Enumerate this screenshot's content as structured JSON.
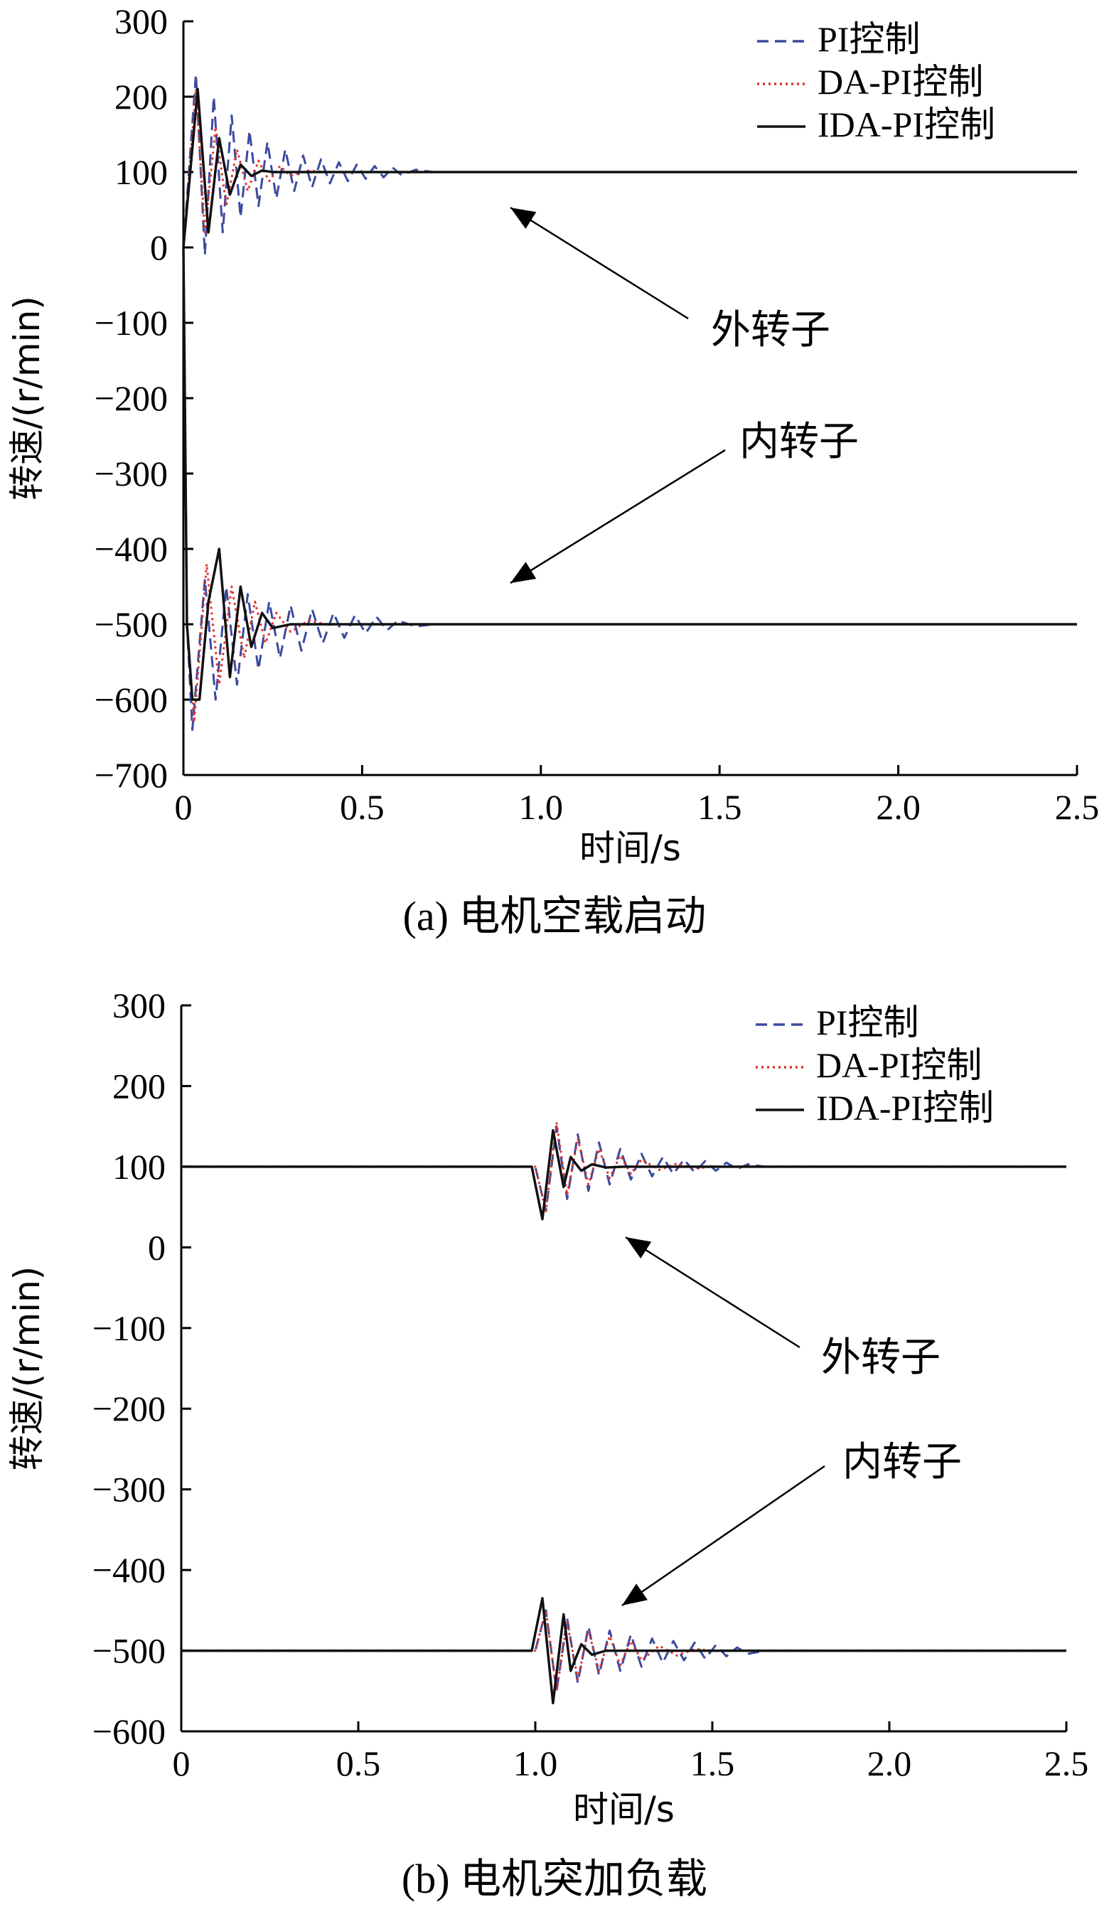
{
  "chart_data": [
    {
      "id": "a",
      "type": "line",
      "caption": "(a)  电机空载启动",
      "xlabel": "时间/s",
      "ylabel": "转速/(r/min)",
      "xlim": [
        0,
        2.5
      ],
      "ylim": [
        -700,
        300
      ],
      "xticks": [
        "0",
        "0.5",
        "1.0",
        "1.5",
        "2.0",
        "2.5"
      ],
      "yticks": [
        "300",
        "200",
        "100",
        "0",
        "−100",
        "−200",
        "−300",
        "−400",
        "−500",
        "−600",
        "−700"
      ],
      "legend_position": "top-right",
      "annotations": [
        {
          "text": "外转子",
          "target": [
            0.9,
            100
          ]
        },
        {
          "text": "内转子",
          "target": [
            0.9,
            -440
          ]
        }
      ],
      "series": [
        {
          "name": "PI控制",
          "style": "dashed",
          "color": "#3b4aa0",
          "curves": [
            {
              "x": [
                0,
                0.035,
                0.06,
                0.085,
                0.11,
                0.135,
                0.16,
                0.185,
                0.21,
                0.235,
                0.26,
                0.285,
                0.31,
                0.335,
                0.36,
                0.385,
                0.41,
                0.435,
                0.46,
                0.485,
                0.51,
                0.535,
                0.56,
                0.585,
                0.61,
                0.65,
                0.7,
                0.8,
                1.0,
                2.5
              ],
              "y": [
                0,
                230,
                -10,
                200,
                20,
                175,
                40,
                155,
                55,
                140,
                65,
                130,
                75,
                122,
                80,
                117,
                85,
                113,
                88,
                110,
                91,
                108,
                93,
                106,
                96,
                103,
                100,
                100,
                100,
                100
              ]
            },
            {
              "x": [
                0,
                0.01,
                0.025,
                0.06,
                0.09,
                0.12,
                0.15,
                0.18,
                0.21,
                0.24,
                0.27,
                0.3,
                0.33,
                0.36,
                0.39,
                0.42,
                0.45,
                0.48,
                0.51,
                0.54,
                0.57,
                0.6,
                0.65,
                0.7,
                0.8,
                2.5
              ],
              "y": [
                0,
                -500,
                -640,
                -440,
                -600,
                -450,
                -580,
                -460,
                -560,
                -470,
                -545,
                -475,
                -535,
                -480,
                -525,
                -485,
                -518,
                -488,
                -512,
                -490,
                -508,
                -495,
                -503,
                -500,
                -500,
                -500
              ]
            }
          ]
        },
        {
          "name": "DA-PI控制",
          "style": "dotted",
          "color": "#e0312a",
          "curves": [
            {
              "x": [
                0,
                0.035,
                0.06,
                0.09,
                0.12,
                0.15,
                0.18,
                0.21,
                0.24,
                0.27,
                0.3,
                0.35,
                0.4,
                2.5
              ],
              "y": [
                0,
                210,
                20,
                160,
                55,
                130,
                75,
                115,
                88,
                108,
                95,
                102,
                100,
                100
              ]
            },
            {
              "x": [
                0,
                0.01,
                0.03,
                0.065,
                0.1,
                0.135,
                0.17,
                0.2,
                0.23,
                0.26,
                0.3,
                0.35,
                0.4,
                2.5
              ],
              "y": [
                0,
                -500,
                -630,
                -420,
                -580,
                -450,
                -545,
                -470,
                -525,
                -485,
                -510,
                -495,
                -500,
                -500
              ]
            }
          ]
        },
        {
          "name": "IDA-PI控制",
          "style": "solid",
          "color": "#111111",
          "curves": [
            {
              "x": [
                0,
                0.04,
                0.07,
                0.1,
                0.13,
                0.16,
                0.19,
                0.22,
                0.25,
                0.3,
                2.5
              ],
              "y": [
                0,
                210,
                20,
                145,
                70,
                110,
                95,
                102,
                100,
                100,
                100
              ]
            },
            {
              "x": [
                0,
                0.01,
                0.025,
                0.045,
                0.07,
                0.1,
                0.13,
                0.16,
                0.19,
                0.22,
                0.25,
                0.3,
                2.5
              ],
              "y": [
                0,
                -500,
                -600,
                -600,
                -470,
                -400,
                -570,
                -450,
                -530,
                -485,
                -505,
                -500,
                -500
              ]
            }
          ]
        }
      ]
    },
    {
      "id": "b",
      "type": "line",
      "caption": "(b)  电机突加负载",
      "xlabel": "时间/s",
      "ylabel": "转速/(r/min)",
      "xlim": [
        0,
        2.5
      ],
      "ylim": [
        -600,
        300
      ],
      "xticks": [
        "0",
        "0.5",
        "1.0",
        "1.5",
        "2.0",
        "2.5"
      ],
      "yticks": [
        "300",
        "200",
        "100",
        "0",
        "−100",
        "−200",
        "−300",
        "−400",
        "−500",
        "−600"
      ],
      "legend_position": "top-right",
      "annotations": [
        {
          "text": "外转子",
          "target": [
            1.2,
            45
          ]
        },
        {
          "text": "内转子",
          "target": [
            1.2,
            -430
          ]
        }
      ],
      "series": [
        {
          "name": "PI控制",
          "style": "dashed",
          "color": "#3b4aa0",
          "curves": [
            {
              "x": [
                0,
                1.0,
                1.03,
                1.06,
                1.09,
                1.12,
                1.15,
                1.18,
                1.21,
                1.24,
                1.27,
                1.3,
                1.33,
                1.36,
                1.39,
                1.42,
                1.45,
                1.48,
                1.51,
                1.54,
                1.57,
                1.6,
                1.65,
                2.5
              ],
              "y": [
                100,
                100,
                45,
                150,
                60,
                140,
                70,
                130,
                78,
                122,
                84,
                116,
                88,
                112,
                91,
                109,
                93,
                107,
                95,
                105,
                97,
                103,
                100,
                100
              ]
            },
            {
              "x": [
                0,
                1.0,
                1.03,
                1.06,
                1.09,
                1.12,
                1.15,
                1.18,
                1.21,
                1.24,
                1.27,
                1.3,
                1.33,
                1.36,
                1.39,
                1.42,
                1.45,
                1.48,
                1.51,
                1.54,
                1.57,
                1.6,
                1.65,
                2.5
              ],
              "y": [
                -500,
                -500,
                -450,
                -550,
                -460,
                -540,
                -470,
                -530,
                -475,
                -525,
                -480,
                -520,
                -485,
                -515,
                -488,
                -512,
                -490,
                -510,
                -493,
                -507,
                -496,
                -504,
                -500,
                -500
              ]
            }
          ]
        },
        {
          "name": "DA-PI控制",
          "style": "dotted",
          "color": "#e0312a",
          "curves": [
            {
              "x": [
                0,
                1.0,
                1.03,
                1.06,
                1.09,
                1.12,
                1.15,
                1.18,
                1.21,
                1.24,
                1.27,
                1.3,
                1.35,
                1.4,
                1.45,
                1.5,
                2.5
              ],
              "y": [
                100,
                100,
                45,
                155,
                65,
                135,
                78,
                122,
                86,
                114,
                91,
                109,
                96,
                104,
                98,
                100,
                100
              ]
            },
            {
              "x": [
                0,
                1.0,
                1.03,
                1.06,
                1.09,
                1.12,
                1.15,
                1.18,
                1.21,
                1.24,
                1.27,
                1.3,
                1.35,
                1.4,
                1.45,
                1.5,
                2.5
              ],
              "y": [
                -500,
                -500,
                -450,
                -550,
                -465,
                -535,
                -475,
                -525,
                -482,
                -518,
                -488,
                -512,
                -494,
                -506,
                -498,
                -500,
                -500
              ]
            }
          ]
        },
        {
          "name": "IDA-PI控制",
          "style": "solid",
          "color": "#111111",
          "curves": [
            {
              "x": [
                0,
                0.99,
                1.02,
                1.05,
                1.08,
                1.1,
                1.13,
                1.16,
                1.2,
                1.25,
                2.5
              ],
              "y": [
                100,
                100,
                35,
                145,
                75,
                112,
                95,
                103,
                99,
                100,
                100
              ]
            },
            {
              "x": [
                0,
                0.99,
                1.02,
                1.05,
                1.08,
                1.1,
                1.13,
                1.16,
                1.2,
                1.25,
                2.5
              ],
              "y": [
                -500,
                -500,
                -435,
                -565,
                -455,
                -525,
                -492,
                -505,
                -500,
                -500,
                -500
              ]
            }
          ]
        }
      ]
    }
  ]
}
